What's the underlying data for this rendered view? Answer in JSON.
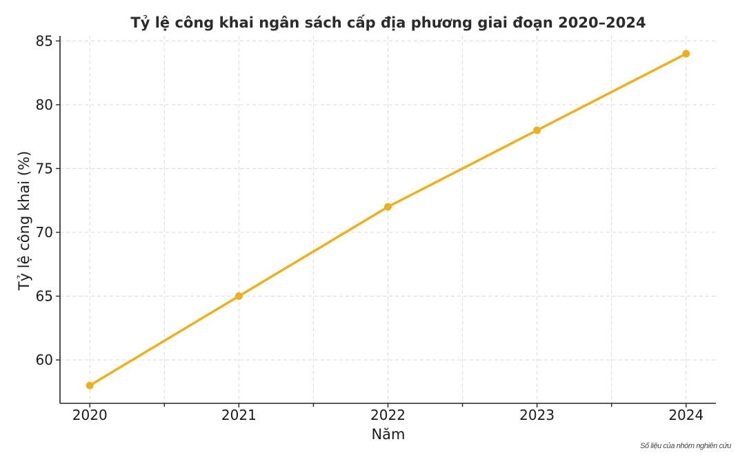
{
  "chart_data": {
    "type": "line",
    "title": "Tỷ lệ công khai ngân sách cấp địa phương giai đoạn 2020–2024",
    "xlabel": "Năm",
    "ylabel": "Tỷ lệ công khai (%)",
    "x": [
      2020,
      2021,
      2022,
      2023,
      2024
    ],
    "x_tick_labels": [
      "2020",
      "2021",
      "2022",
      "2023",
      "2024"
    ],
    "xlim": [
      2019.8,
      2024.2
    ],
    "x_minor_ticks": [
      2020.5,
      2021.5,
      2022.5,
      2023.5
    ],
    "series": [
      {
        "values": [
          58,
          65,
          72,
          78,
          84
        ],
        "color": "#ECB01F"
      }
    ],
    "ylim": [
      56.6,
      85.4
    ],
    "y_ticks": [
      60,
      65,
      70,
      75,
      80,
      85
    ],
    "y_tick_labels": [
      "60",
      "65",
      "70",
      "75",
      "80",
      "85"
    ],
    "grid": true,
    "legend": "none"
  },
  "footnote": "Số liệu của nhóm nghiên cứu"
}
